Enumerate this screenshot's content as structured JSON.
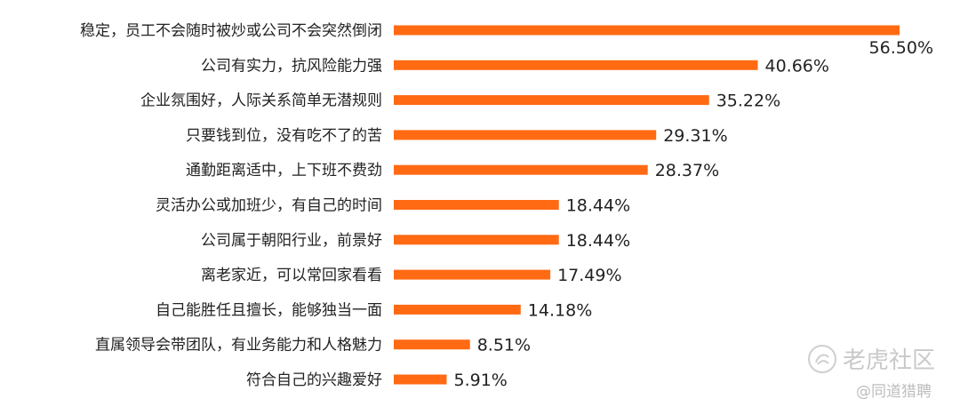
{
  "chart_data": {
    "type": "bar",
    "orientation": "horizontal",
    "categories": [
      "稳定，员工不会随时被炒或公司不会突然倒闭",
      "公司有实力，抗风险能力强",
      "企业氛围好，人际关系简单无潜规则",
      "只要钱到位，没有吃不了的苦",
      "通勤距离适中，上下班不费劲",
      "灵活办公或加班少，有自己的时间",
      "公司属于朝阳行业，前景好",
      "离老家近，可以常回家看看",
      "自己能胜任且擅长，能够独当一面",
      "直属领导会带团队，有业务能力和人格魅力",
      "符合自己的兴趣爱好"
    ],
    "values": [
      56.5,
      40.66,
      35.22,
      29.31,
      28.37,
      18.44,
      18.44,
      17.49,
      14.18,
      8.51,
      5.91
    ],
    "value_labels": [
      "56.50%",
      "40.66%",
      "35.22%",
      "29.31%",
      "28.37%",
      "18.44%",
      "18.44%",
      "17.49%",
      "14.18%",
      "8.51%",
      "5.91%"
    ],
    "bar_color": "#FF6A13",
    "title": "",
    "xlabel": "",
    "ylabel": "",
    "grid": false,
    "legend": "none"
  },
  "watermark": {
    "main": "老虎社区",
    "sub": "@同道猎聘"
  }
}
